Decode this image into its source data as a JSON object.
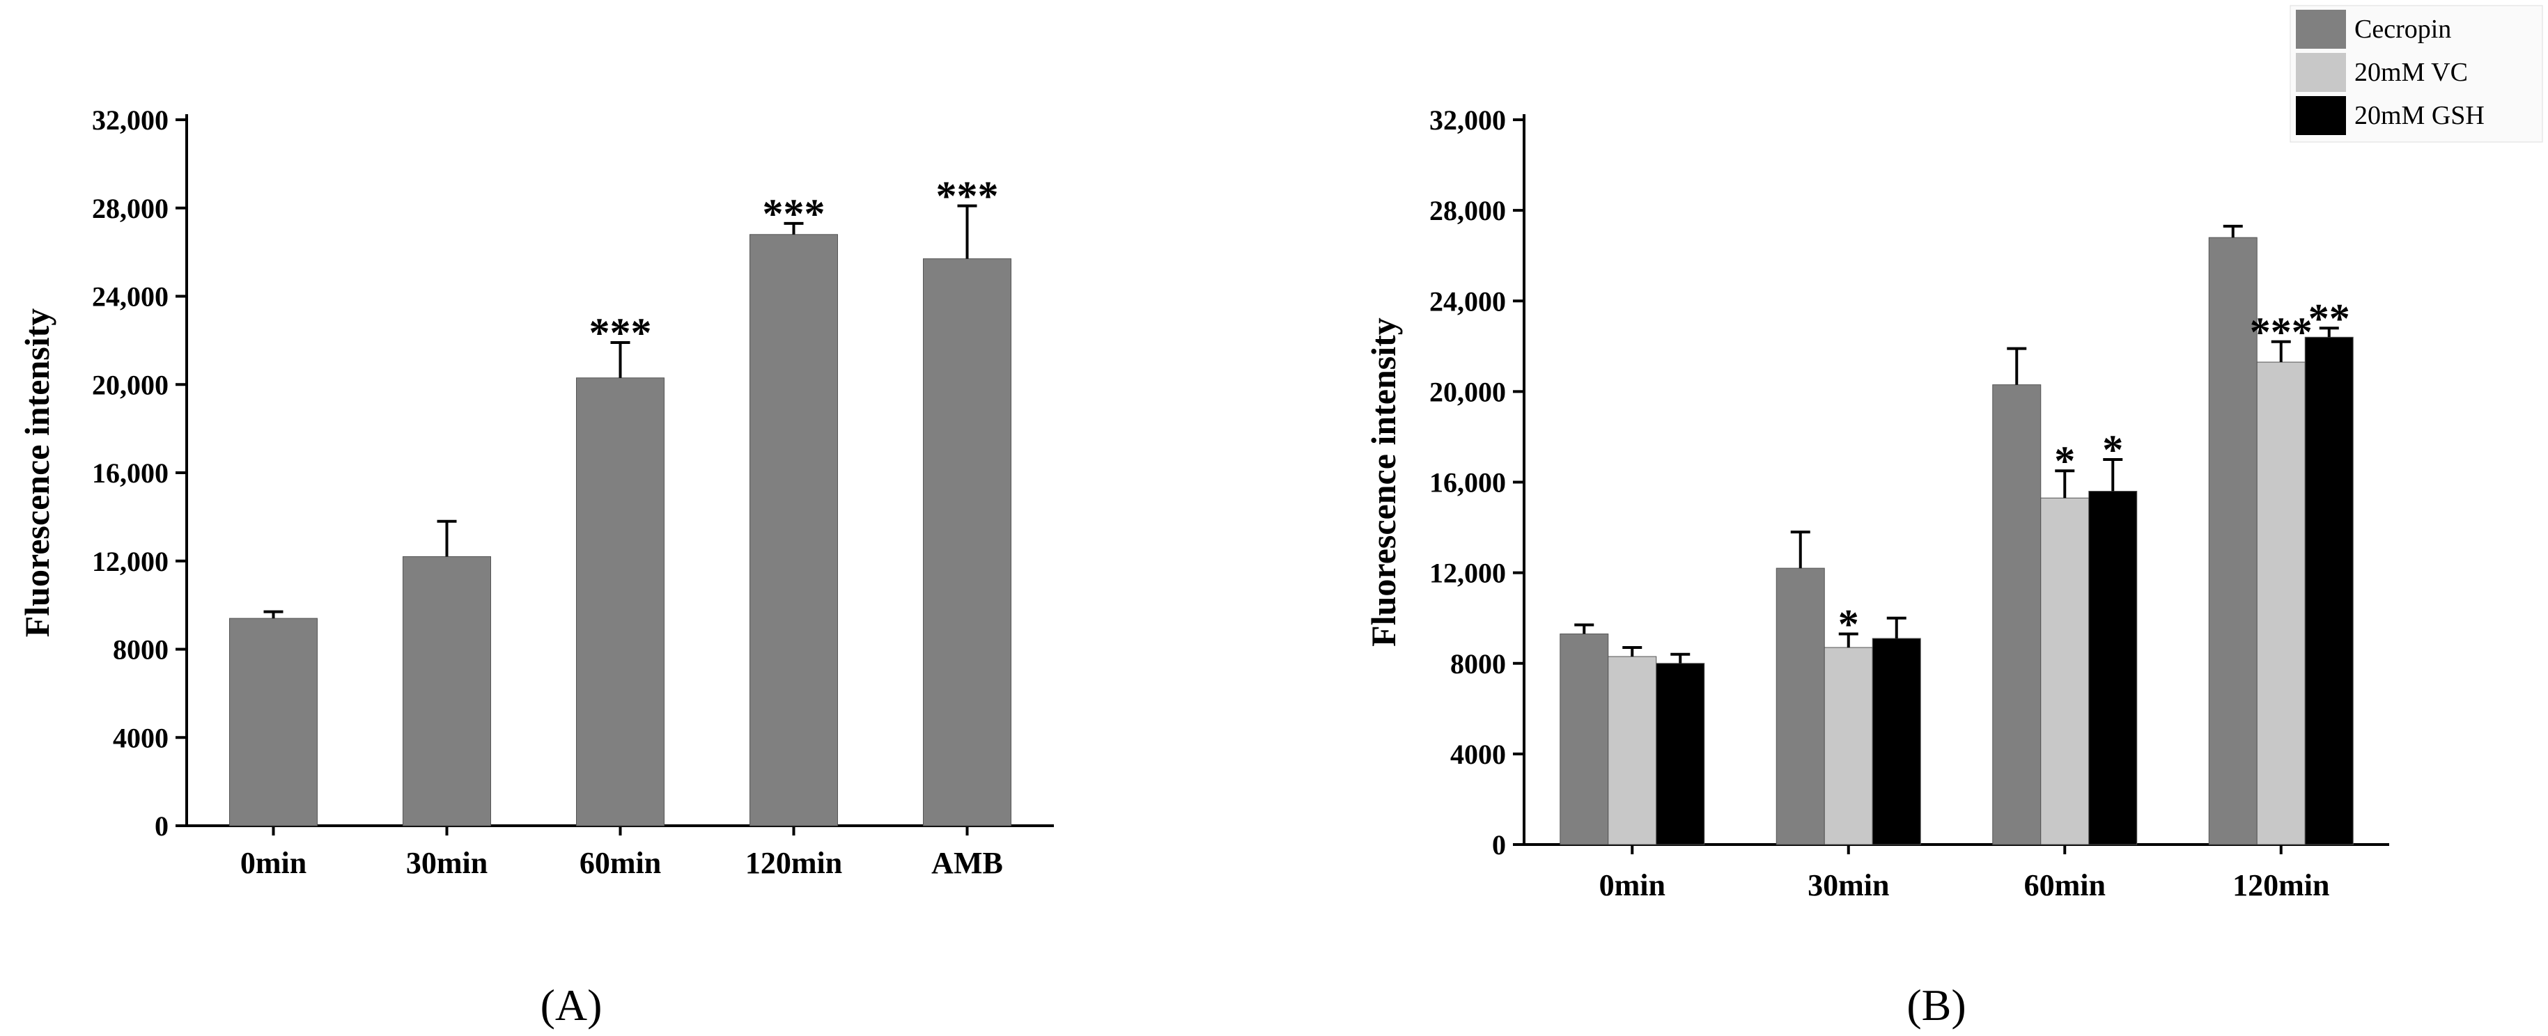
{
  "panels": [
    {
      "panel_label": "(A)",
      "chart_data": {
        "type": "bar",
        "title": "",
        "xlabel": "",
        "ylabel": "Fluorescence intensity",
        "ylim": [
          0,
          32000
        ],
        "yticks": [
          0,
          4000,
          8000,
          12000,
          16000,
          20000,
          24000,
          28000,
          32000
        ],
        "ytick_labels": [
          "0",
          "4000",
          "8000",
          "12,000",
          "16,000",
          "20,000",
          "24,000",
          "28,000",
          "32,000"
        ],
        "categories": [
          "0min",
          "30min",
          "60min",
          "120min",
          "AMB"
        ],
        "series": [
          {
            "values": [
              9400,
              12200,
              20300,
              26800,
              25700
            ],
            "errors": [
              300,
              1600,
              1600,
              500,
              2400
            ],
            "significance": [
              "",
              "",
              "***",
              "***",
              "***"
            ],
            "color": "#808080"
          }
        ],
        "grid": false
      }
    },
    {
      "panel_label": "(B)",
      "chart_data": {
        "type": "bar",
        "title": "",
        "xlabel": "",
        "ylabel": "Fluorescence intensity",
        "ylim": [
          0,
          32000
        ],
        "yticks": [
          0,
          4000,
          8000,
          12000,
          16000,
          20000,
          24000,
          28000,
          32000
        ],
        "ytick_labels": [
          "0",
          "4000",
          "8000",
          "12,000",
          "16,000",
          "20,000",
          "24,000",
          "28,000",
          "32,000"
        ],
        "categories": [
          "0min",
          "30min",
          "60min",
          "120min"
        ],
        "series": [
          {
            "name": "Cecropin",
            "values": [
              9300,
              12200,
              20300,
              26800
            ],
            "errors": [
              400,
              1600,
              1600,
              500
            ],
            "significance": [
              "",
              "",
              "",
              ""
            ],
            "color": "#808080"
          },
          {
            "name": "20mM VC",
            "values": [
              8300,
              8700,
              15300,
              21300
            ],
            "errors": [
              400,
              600,
              1200,
              900
            ],
            "significance": [
              "",
              "*",
              "*",
              "***"
            ],
            "color": "#c8c8c8"
          },
          {
            "name": "20mM GSH",
            "values": [
              8000,
              9100,
              15600,
              22400
            ],
            "errors": [
              400,
              900,
              1400,
              400
            ],
            "significance": [
              "",
              "",
              "*",
              "**"
            ],
            "color": "#000000"
          }
        ],
        "legend": "top-right",
        "grid": false
      }
    }
  ]
}
